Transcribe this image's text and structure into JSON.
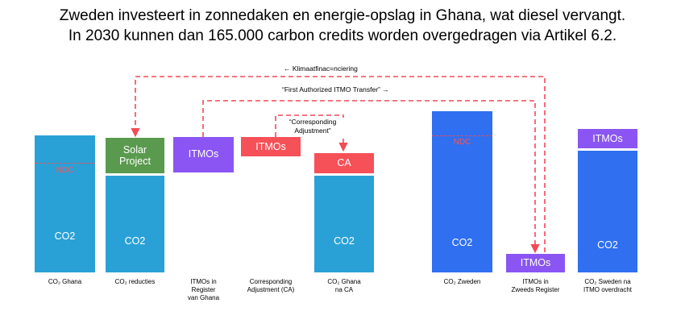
{
  "title": {
    "line1": "Zweden investeert in zonnedaken en energie-opslag in Ghana, wat diesel vervangt.",
    "line2": "In 2030 kunnen dan 165.000 carbon credits worden overgedragen via Artikel 6.2."
  },
  "arrows": {
    "top_label": "← Klimaatfinac=nciering",
    "second_label": "“First Authorized ITMO Transfer” →",
    "ca_label_line1": "“Corresponding",
    "ca_label_line2": "Adjustment”"
  },
  "blocks": {
    "co2": "CO2",
    "ndc": "NDC",
    "solar_line1": "Solar",
    "solar_line2": "Project",
    "itmos": "ITMOs",
    "ca": "CA"
  },
  "captions": {
    "c1": [
      "CO₂ Ghana"
    ],
    "c2": [
      "CO₂ reducties"
    ],
    "c3": [
      "ITMOs in",
      "Register",
      "van Ghana"
    ],
    "c4": [
      "Corresponding",
      "Adjustment (CA)"
    ],
    "c5": [
      "CO₂ Ghana",
      "na CA"
    ],
    "c6": [
      "CO₂ Zweden"
    ],
    "c7": [
      "ITMOs in",
      "Zweeds Register"
    ],
    "c8": [
      "CO₂ Sweden na",
      "ITMO overdracht"
    ]
  },
  "colors": {
    "teal": "#2aa1d6",
    "royal": "#2f6ff0",
    "green": "#5a9a4e",
    "purple": "#8a55f2",
    "red": "#f65058"
  }
}
